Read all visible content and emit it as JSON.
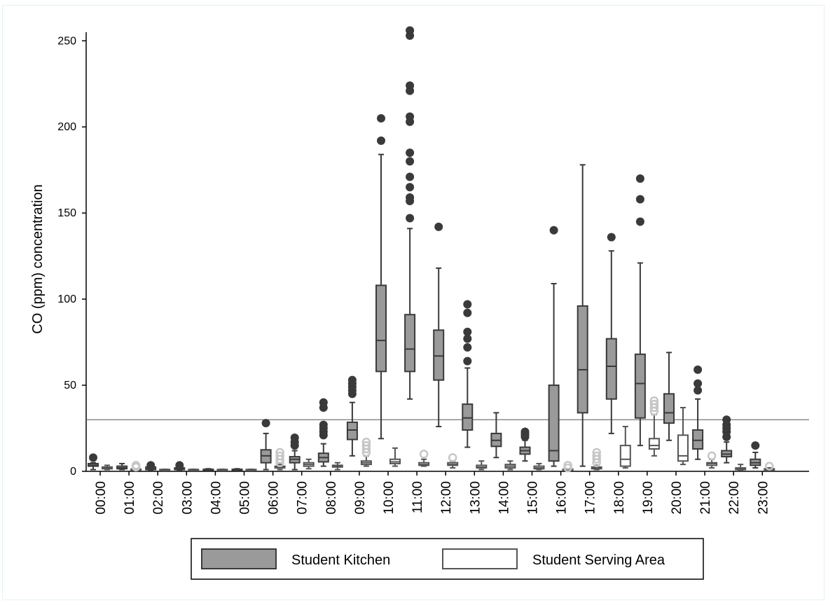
{
  "chart_data": {
    "type": "box",
    "ylabel": "CO (ppm) concentration",
    "xlabel": "",
    "ylim": [
      0,
      255
    ],
    "yticks": [
      0,
      50,
      100,
      150,
      200,
      250
    ],
    "reference_line": 30,
    "grid": false,
    "legend_position": "bottom",
    "categories": [
      "00:00",
      "01:00",
      "02:00",
      "03:00",
      "04:00",
      "05:00",
      "06:00",
      "07:00",
      "08:00",
      "09:00",
      "10:00",
      "11:00",
      "12:00",
      "13:00",
      "14:00",
      "15:00",
      "16:00",
      "17:00",
      "18:00",
      "19:00",
      "20:00",
      "21:00",
      "22:00",
      "23:00"
    ],
    "series": [
      {
        "name": "Student Kitchen",
        "fill": "#9a9a9a",
        "stroke": "#3a3a3a",
        "boxes": [
          {
            "whisker_low": 1,
            "q1": 3,
            "median": 3.5,
            "q3": 4.5,
            "whisker_high": 5,
            "outliers": [
              8
            ]
          },
          {
            "whisker_low": 1,
            "q1": 1.5,
            "median": 2,
            "q3": 3,
            "whisker_high": 4.5,
            "outliers": []
          },
          {
            "whisker_low": 0.5,
            "q1": 1,
            "median": 1.5,
            "q3": 2.5,
            "whisker_high": 3,
            "outliers": [
              3.5
            ]
          },
          {
            "whisker_low": 0.5,
            "q1": 1,
            "median": 1.5,
            "q3": 2,
            "whisker_high": 2.5,
            "outliers": [
              3.5
            ]
          },
          {
            "whisker_low": 0.5,
            "q1": 0.8,
            "median": 1,
            "q3": 1.2,
            "whisker_high": 1.5,
            "outliers": []
          },
          {
            "whisker_low": 0.5,
            "q1": 0.8,
            "median": 1,
            "q3": 1.2,
            "whisker_high": 1.5,
            "outliers": []
          },
          {
            "whisker_low": 1,
            "q1": 5,
            "median": 9,
            "q3": 12.5,
            "whisker_high": 22,
            "outliers": [
              28
            ]
          },
          {
            "whisker_low": 1,
            "q1": 5,
            "median": 7,
            "q3": 8.5,
            "whisker_high": 12,
            "outliers": [
              15,
              17,
              19.5
            ]
          },
          {
            "whisker_low": 3,
            "q1": 5.5,
            "median": 8,
            "q3": 10.5,
            "whisker_high": 16,
            "outliers": [
              21,
              23,
              25,
              27,
              37,
              40
            ]
          },
          {
            "whisker_low": 9,
            "q1": 18.5,
            "median": 24,
            "q3": 28.5,
            "whisker_high": 40,
            "outliers": [
              45,
              47,
              49,
              51,
              53
            ]
          },
          {
            "whisker_low": 19,
            "q1": 58,
            "median": 76,
            "q3": 108,
            "whisker_high": 184,
            "outliers": [
              192,
              205
            ]
          },
          {
            "whisker_low": 42,
            "q1": 58,
            "median": 71,
            "q3": 91,
            "whisker_high": 141,
            "outliers": [
              147,
              157,
              159,
              165,
              171,
              180,
              185,
              203,
              206,
              221,
              224,
              253,
              256
            ]
          },
          {
            "whisker_low": 26,
            "q1": 53,
            "median": 67,
            "q3": 82,
            "whisker_high": 118,
            "outliers": [
              142
            ]
          },
          {
            "whisker_low": 14,
            "q1": 24,
            "median": 31,
            "q3": 39,
            "whisker_high": 60,
            "outliers": [
              64,
              72,
              77,
              81,
              92,
              97
            ]
          },
          {
            "whisker_low": 8,
            "q1": 14.5,
            "median": 18,
            "q3": 22,
            "whisker_high": 34,
            "outliers": []
          },
          {
            "whisker_low": 6,
            "q1": 10,
            "median": 12,
            "q3": 14,
            "whisker_high": 18,
            "outliers": [
              20,
              21,
              22,
              23
            ]
          },
          {
            "whisker_low": 3,
            "q1": 6,
            "median": 12,
            "q3": 50,
            "whisker_high": 109,
            "outliers": [
              140
            ]
          },
          {
            "whisker_low": 3,
            "q1": 34,
            "median": 59,
            "q3": 96,
            "whisker_high": 178,
            "outliers": []
          },
          {
            "whisker_low": 22,
            "q1": 42,
            "median": 61,
            "q3": 77,
            "whisker_high": 128,
            "outliers": [
              136
            ]
          },
          {
            "whisker_low": 15,
            "q1": 31,
            "median": 51,
            "q3": 68,
            "whisker_high": 121,
            "outliers": [
              145,
              158,
              170
            ]
          },
          {
            "whisker_low": 18,
            "q1": 28,
            "median": 34,
            "q3": 45,
            "whisker_high": 69,
            "outliers": []
          },
          {
            "whisker_low": 7,
            "q1": 13,
            "median": 18,
            "q3": 24,
            "whisker_high": 42,
            "outliers": [
              47,
              51,
              59
            ]
          },
          {
            "whisker_low": 5,
            "q1": 8.5,
            "median": 10,
            "q3": 12,
            "whisker_high": 17,
            "outliers": [
              20,
              23,
              25,
              27,
              30
            ]
          },
          {
            "whisker_low": 2,
            "q1": 3.5,
            "median": 5,
            "q3": 7,
            "whisker_high": 11,
            "outliers": [
              15
            ]
          }
        ]
      },
      {
        "name": "Student Serving Area",
        "fill": "#ffffff",
        "stroke": "#555555",
        "outlier_color": "#c6c6c6",
        "boxes": [
          {
            "whisker_low": 1,
            "q1": 1.5,
            "median": 2,
            "q3": 2.5,
            "whisker_high": 3.5,
            "outliers": []
          },
          {
            "whisker_low": 0.5,
            "q1": 0.8,
            "median": 1,
            "q3": 1.3,
            "whisker_high": 1.5,
            "outliers": [
              2.5,
              3.5
            ]
          },
          {
            "whisker_low": 0.5,
            "q1": 0.8,
            "median": 1,
            "q3": 1.1,
            "whisker_high": 1.2,
            "outliers": []
          },
          {
            "whisker_low": 0.5,
            "q1": 0.8,
            "median": 1,
            "q3": 1.1,
            "whisker_high": 1.2,
            "outliers": []
          },
          {
            "whisker_low": 0.5,
            "q1": 0.8,
            "median": 1,
            "q3": 1.1,
            "whisker_high": 1.2,
            "outliers": []
          },
          {
            "whisker_low": 0.5,
            "q1": 0.8,
            "median": 1,
            "q3": 1.1,
            "whisker_high": 1.2,
            "outliers": []
          },
          {
            "whisker_low": 1,
            "q1": 2,
            "median": 2.5,
            "q3": 3,
            "whisker_high": 4,
            "outliers": [
              5,
              7,
              9,
              11
            ]
          },
          {
            "whisker_low": 1.5,
            "q1": 3,
            "median": 4,
            "q3": 5,
            "whisker_high": 7,
            "outliers": []
          },
          {
            "whisker_low": 1,
            "q1": 2.5,
            "median": 3,
            "q3": 3.5,
            "whisker_high": 5,
            "outliers": []
          },
          {
            "whisker_low": 3,
            "q1": 4,
            "median": 5,
            "q3": 6,
            "whisker_high": 9,
            "outliers": [
              11,
              13,
              15,
              17
            ]
          },
          {
            "whisker_low": 3,
            "q1": 4.5,
            "median": 5.5,
            "q3": 7,
            "whisker_high": 13.5,
            "outliers": []
          },
          {
            "whisker_low": 3,
            "q1": 3.5,
            "median": 4,
            "q3": 5,
            "whisker_high": 7,
            "outliers": [
              10
            ]
          },
          {
            "whisker_low": 2,
            "q1": 3.5,
            "median": 4,
            "q3": 5,
            "whisker_high": 6,
            "outliers": [
              8
            ]
          },
          {
            "whisker_low": 1,
            "q1": 2,
            "median": 2.5,
            "q3": 3.5,
            "whisker_high": 6,
            "outliers": []
          },
          {
            "whisker_low": 1,
            "q1": 2,
            "median": 3,
            "q3": 4,
            "whisker_high": 6,
            "outliers": []
          },
          {
            "whisker_low": 1,
            "q1": 1.5,
            "median": 2,
            "q3": 3,
            "whisker_high": 4.5,
            "outliers": []
          },
          {
            "whisker_low": 0.5,
            "q1": 0.8,
            "median": 1,
            "q3": 1.3,
            "whisker_high": 1.5,
            "outliers": [
              2,
              3.5
            ]
          },
          {
            "whisker_low": 1,
            "q1": 1.5,
            "median": 2,
            "q3": 2.5,
            "whisker_high": 3.5,
            "outliers": [
              5,
              7,
              9,
              11
            ]
          },
          {
            "whisker_low": 2,
            "q1": 3,
            "median": 7,
            "q3": 15,
            "whisker_high": 26,
            "outliers": []
          },
          {
            "whisker_low": 9,
            "q1": 13,
            "median": 15,
            "q3": 19,
            "whisker_high": 33,
            "outliers": [
              35,
              37,
              39,
              41
            ]
          },
          {
            "whisker_low": 4,
            "q1": 6,
            "median": 9,
            "q3": 21,
            "whisker_high": 37,
            "outliers": []
          },
          {
            "whisker_low": 2,
            "q1": 3.5,
            "median": 4.5,
            "q3": 5,
            "whisker_high": 7,
            "outliers": [
              9
            ]
          },
          {
            "whisker_low": 0.8,
            "q1": 1,
            "median": 1.5,
            "q3": 2,
            "whisker_high": 4,
            "outliers": []
          },
          {
            "whisker_low": 0.5,
            "q1": 0.8,
            "median": 1,
            "q3": 1.5,
            "whisker_high": 2,
            "outliers": [
              3
            ]
          }
        ]
      }
    ]
  }
}
